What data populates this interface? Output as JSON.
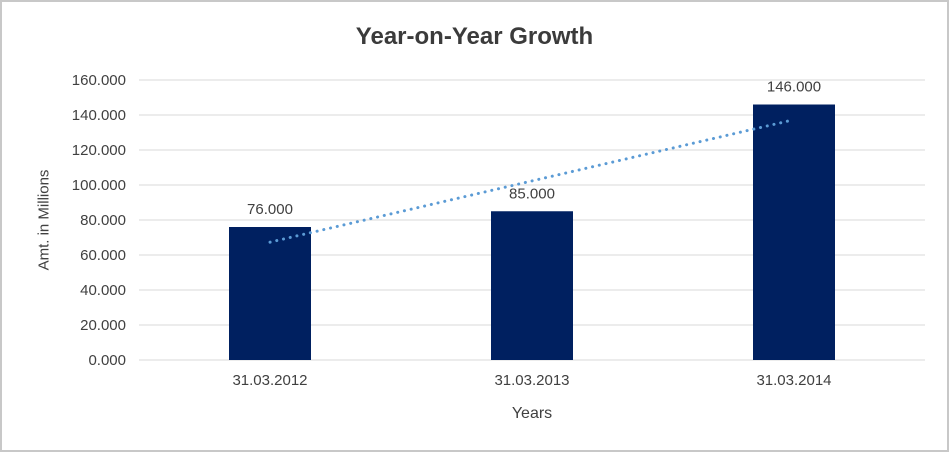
{
  "chart_data": {
    "type": "bar",
    "title": "Year-on-Year Growth",
    "categories": [
      "31.03.2012",
      "31.03.2013",
      "31.03.2014"
    ],
    "values": [
      76,
      85,
      146
    ],
    "data_labels": [
      "76.000",
      "85.000",
      "146.000"
    ],
    "xlabel": "Years",
    "ylabel": "Amt. in Millions",
    "ylim": [
      0,
      160
    ],
    "ytick_step": 20,
    "ytick_labels": [
      "0.000",
      "20.000",
      "40.000",
      "60.000",
      "80.000",
      "100.000",
      "120.000",
      "140.000",
      "160.000"
    ],
    "grid": "horizontal",
    "legend": "none",
    "trendline": {
      "type": "linear",
      "style": "dotted"
    },
    "colors": {
      "bar": "#002060",
      "trendline": "#5B9BD5",
      "gridline": "#D9D9D9",
      "axis_text": "#404040",
      "title_text": "#3B3B3B",
      "frame_border": "#C8C8C8",
      "background": "#FFFFFF"
    }
  }
}
